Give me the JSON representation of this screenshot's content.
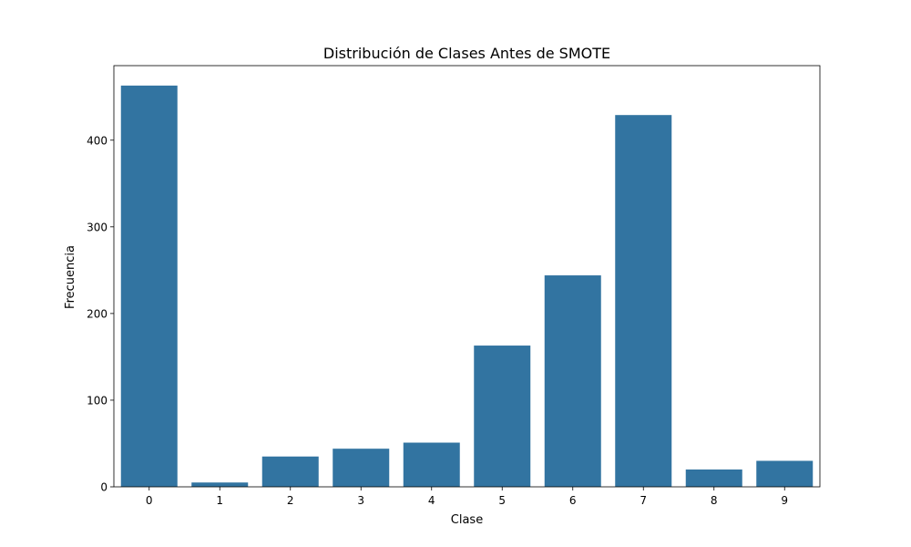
{
  "chart_data": {
    "type": "bar",
    "title": "Distribución de Clases Antes de SMOTE",
    "xlabel": "Clase",
    "ylabel": "Frecuencia",
    "categories": [
      "0",
      "1",
      "2",
      "3",
      "4",
      "5",
      "6",
      "7",
      "8",
      "9"
    ],
    "values": [
      463,
      5,
      35,
      44,
      51,
      163,
      244,
      429,
      20,
      30
    ],
    "ylim": [
      0,
      486
    ],
    "yticks": [
      0,
      100,
      200,
      300,
      400
    ],
    "grid": false,
    "bar_color": "#3274a1"
  }
}
